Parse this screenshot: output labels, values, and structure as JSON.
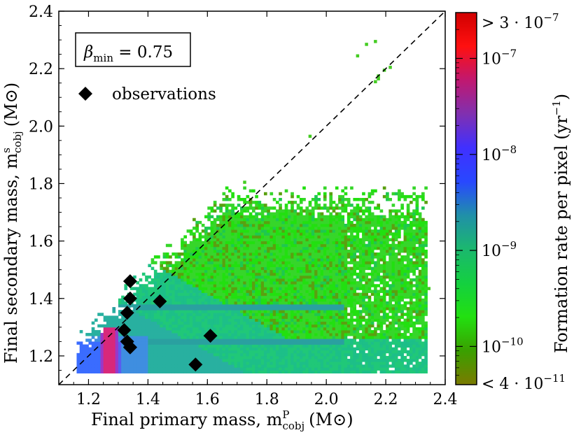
{
  "chart_data": {
    "type": "heatmap",
    "xlabel": "Final primary mass, m",
    "xlabel_sup": "P",
    "xlabel_sub": "cobj",
    "xlabel_unit": "(M⊙)",
    "ylabel": "Final secondary mass, m",
    "ylabel_sup": "s",
    "ylabel_sub": "cobj",
    "ylabel_unit": "(M⊙)",
    "xlim": [
      1.1,
      2.4
    ],
    "ylim": [
      1.1,
      2.4
    ],
    "xticks": [
      "1.2",
      "1.4",
      "1.6",
      "1.8",
      "2.0",
      "2.2",
      "2.4"
    ],
    "yticks": [
      "1.2",
      "1.4",
      "1.6",
      "1.8",
      "2.0",
      "2.2",
      "2.4"
    ],
    "annotation": {
      "greek": "β",
      "sub": "min",
      "rest": " = 0.75"
    },
    "legend": [
      {
        "label": "observations",
        "marker": "diamond",
        "color": "#000000"
      }
    ],
    "diagonal_line": {
      "style": "dashed",
      "from": [
        1.1,
        1.1
      ],
      "to": [
        2.4,
        2.4
      ]
    },
    "observations": {
      "x": [
        1.34,
        1.34,
        1.33,
        1.32,
        1.33,
        1.34,
        1.34,
        1.44,
        1.61,
        1.56
      ],
      "y": [
        1.46,
        1.4,
        1.35,
        1.29,
        1.25,
        1.23,
        1.23,
        1.39,
        1.27,
        1.17
      ]
    },
    "outlier_pixels": [
      [
        2.16,
        2.29
      ],
      [
        2.1,
        2.24
      ],
      [
        2.13,
        2.28
      ],
      [
        2.19,
        2.19
      ],
      [
        2.17,
        2.17
      ],
      [
        2.21,
        2.2
      ],
      [
        2.16,
        2.15
      ],
      [
        2.17,
        2.16
      ],
      [
        1.94,
        1.96
      ],
      [
        1.72,
        1.8
      ],
      [
        2.34,
        1.43
      ]
    ],
    "colorbar": {
      "label": "Formation rate per pixel (yr",
      "label_exp": "−1",
      "label_close": ")",
      "scale": "log",
      "range": [
        4e-11,
        3e-07
      ],
      "tick_values": [
        1e-10,
        1e-09,
        1e-08,
        1e-07
      ],
      "tick_labels": [
        {
          "base": "10",
          "exp": "−10"
        },
        {
          "base": "10",
          "exp": "−9"
        },
        {
          "base": "10",
          "exp": "−8"
        },
        {
          "base": "10",
          "exp": "−7"
        }
      ],
      "top_label": "> 3 · 10",
      "top_exp": "−7",
      "bottom_label": "< 4 · 10",
      "bottom_exp": "−11",
      "colors": [
        "#7a7a00",
        "#3aa000",
        "#22e010",
        "#14d040",
        "#1bb86e",
        "#2090a8",
        "#2848ff",
        "#4030ff",
        "#8030b0",
        "#c01870",
        "#ff1010",
        "#d00000"
      ]
    }
  }
}
